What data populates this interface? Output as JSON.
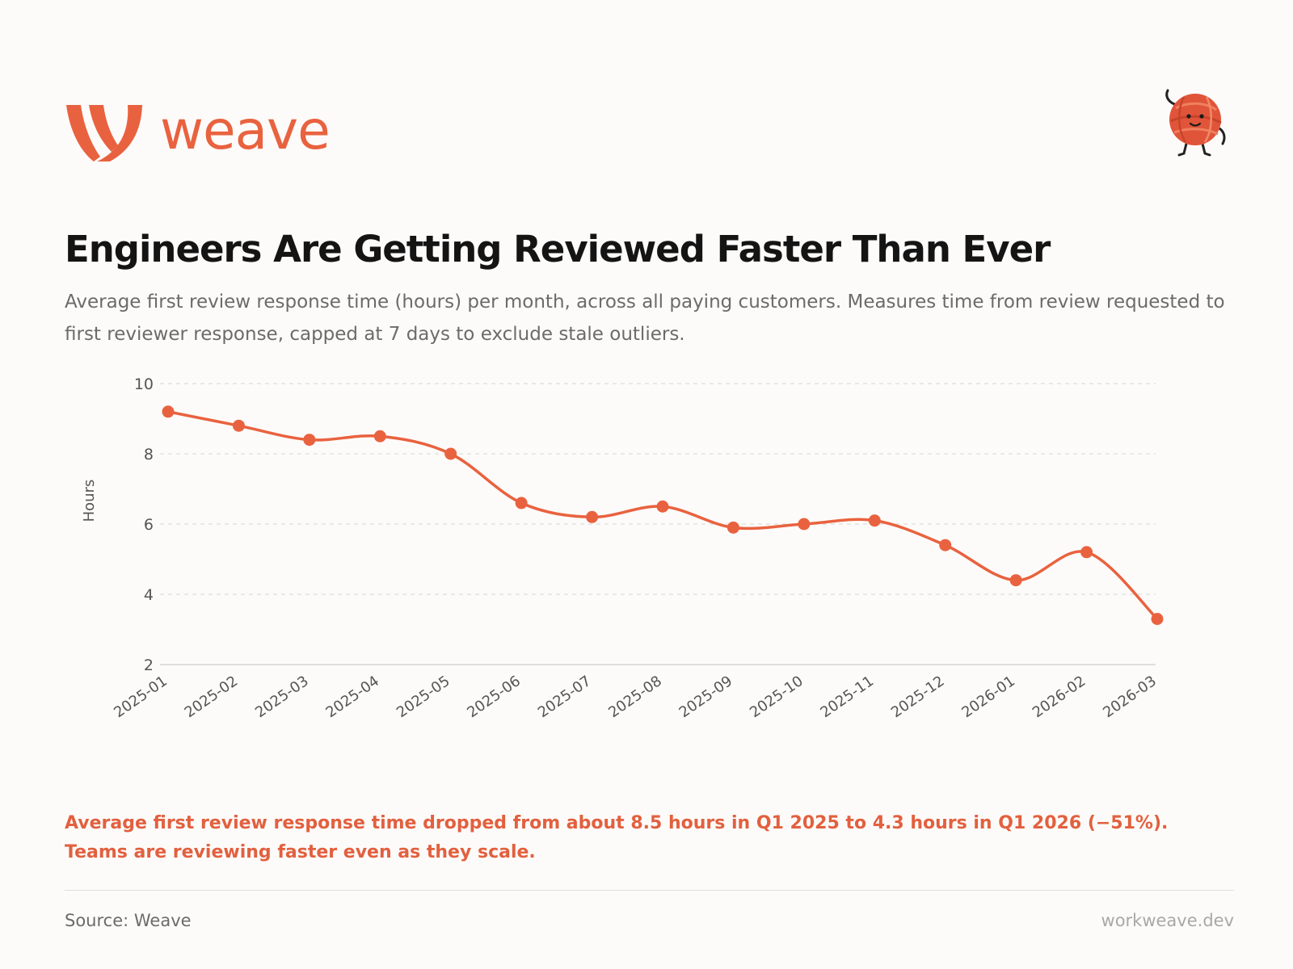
{
  "brand": {
    "name": "weave",
    "color": "#e9623f"
  },
  "header": {
    "title": "Engineers Are Getting Reviewed Faster Than Ever",
    "subtitle": "Average first review response time (hours) per month, across all paying customers. Measures time from review requested to first reviewer response, capped at 7 days to exclude stale outliers."
  },
  "chart_data": {
    "type": "line",
    "title": "Engineers Are Getting Reviewed Faster Than Ever",
    "xlabel": "",
    "ylabel": "Hours",
    "ylim": [
      2,
      10
    ],
    "yticks": [
      2,
      4,
      6,
      8,
      10
    ],
    "grid": true,
    "categories": [
      "2025-01",
      "2025-02",
      "2025-03",
      "2025-04",
      "2025-05",
      "2025-06",
      "2025-07",
      "2025-08",
      "2025-09",
      "2025-10",
      "2025-11",
      "2025-12",
      "2026-01",
      "2026-02",
      "2026-03"
    ],
    "series": [
      {
        "name": "Average first review response time",
        "color": "#e9623f",
        "values": [
          9.2,
          8.8,
          8.4,
          8.5,
          8.0,
          6.6,
          6.2,
          6.5,
          5.9,
          6.0,
          6.1,
          5.4,
          4.4,
          5.2,
          3.3
        ]
      }
    ]
  },
  "insight": {
    "line1": "Average first review response time dropped from about 8.5 hours in Q1 2025 to 4.3 hours in Q1 2026 (−51%).",
    "line2": "Teams are reviewing faster even as they scale."
  },
  "footer": {
    "source": "Source: Weave",
    "site": "workweave.dev"
  }
}
